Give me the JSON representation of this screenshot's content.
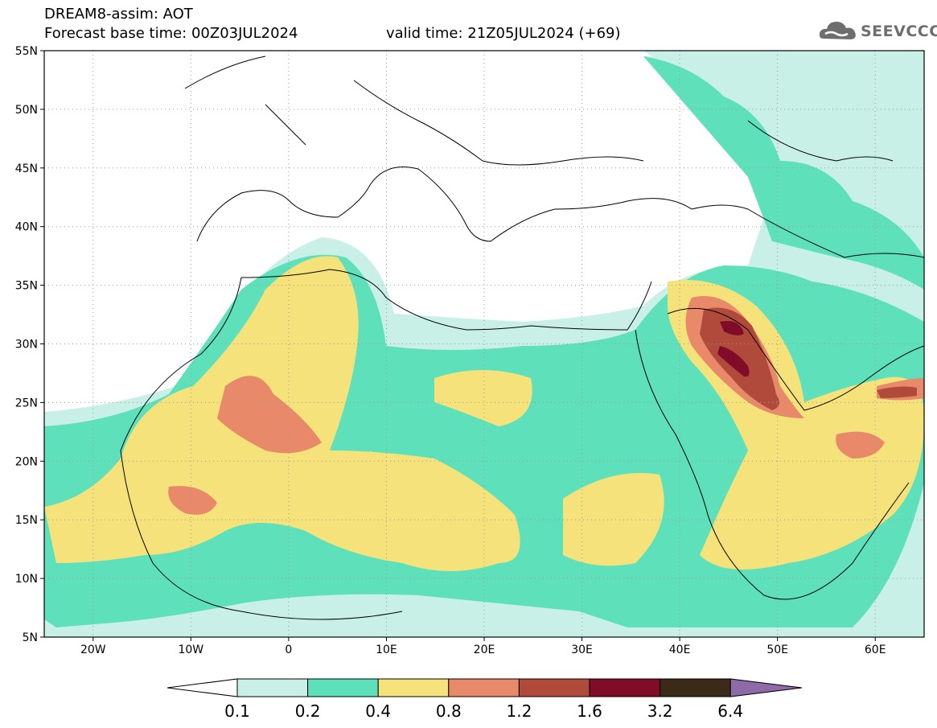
{
  "header": {
    "title": "DREAM8-assim: AOT",
    "forecast_base": "Forecast base time: 00Z03JUL2024",
    "valid_time": "valid time: 21Z05JUL2024 (+69)"
  },
  "logo": {
    "name": "SEEVCCC",
    "icon": "cloud-icon"
  },
  "map": {
    "lon_range": [
      -25,
      65
    ],
    "lat_range": [
      5,
      55
    ],
    "lat_labels": [
      "55N",
      "50N",
      "45N",
      "40N",
      "35N",
      "30N",
      "25N",
      "20N",
      "15N",
      "10N",
      "5N"
    ],
    "lon_labels": [
      "20W",
      "10W",
      "0",
      "10E",
      "20E",
      "30E",
      "40E",
      "50E",
      "60E"
    ],
    "grid": "dotted",
    "colors": {
      "c01": "#c8f0e6",
      "c02": "#5ee0bb",
      "c04": "#f5e27a",
      "c08": "#e8896a",
      "c12": "#b04b3c",
      "c16": "#800c2a"
    }
  },
  "legend": {
    "labels": [
      "0.1",
      "0.2",
      "0.4",
      "0.8",
      "1.2",
      "1.6",
      "3.2",
      "6.4"
    ],
    "colors": [
      "#c8f0e6",
      "#5ee0bb",
      "#f5e27a",
      "#e8896a",
      "#b04b3c",
      "#800c2a",
      "#3b2a17"
    ],
    "low_color": "#ffffff",
    "high_color": "#8e6aa8"
  }
}
